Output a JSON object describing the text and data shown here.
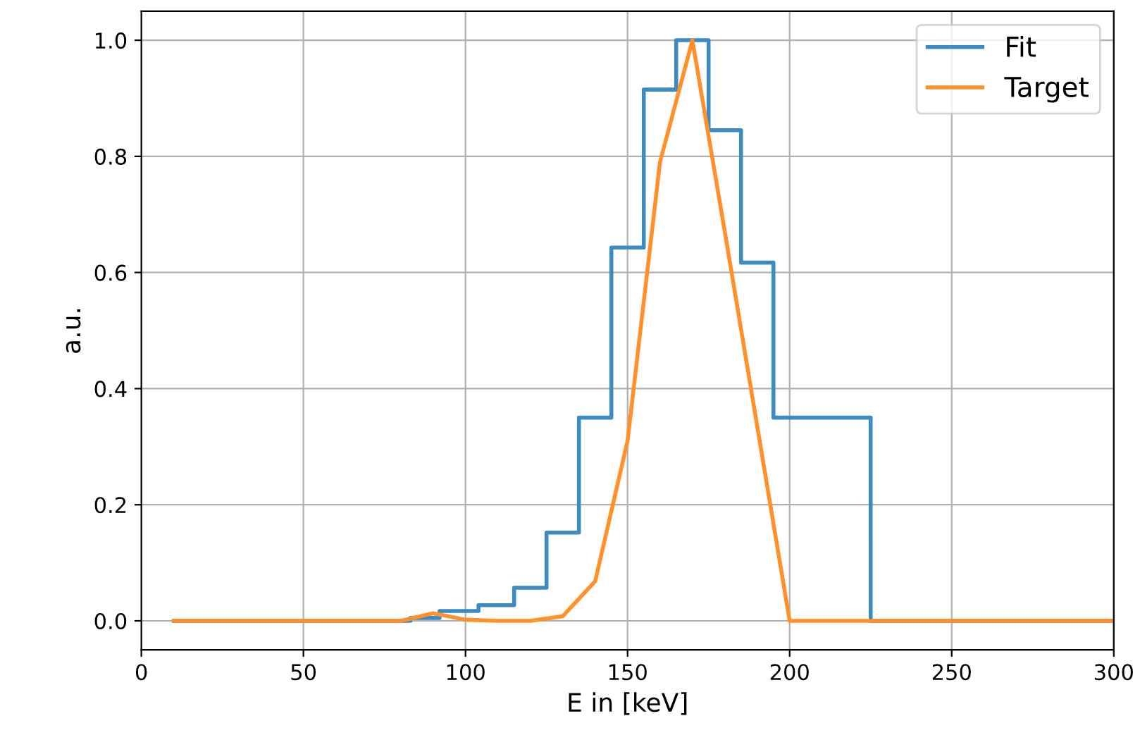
{
  "chart_data": {
    "type": "step",
    "xlabel": "E in [keV]",
    "ylabel": "a.u.",
    "xlim": [
      0,
      300
    ],
    "xticks": [
      0,
      50,
      100,
      150,
      200,
      250,
      300
    ],
    "ylim": [
      -0.05,
      1.05
    ],
    "yticks": [
      {
        "value": 0,
        "label": "0.0"
      },
      {
        "value": 0.2,
        "label": "0.2"
      },
      {
        "value": 0.4,
        "label": "0.4"
      },
      {
        "value": 0.6,
        "label": "0.6"
      },
      {
        "value": 0.8,
        "label": "0.8"
      },
      {
        "value": 1.0,
        "label": "1.0"
      }
    ],
    "grid": true,
    "legend": "top right",
    "series": [
      {
        "name": "Fit",
        "color": "#3c8bc2",
        "x": [
          10,
          83,
          92,
          104,
          115,
          125,
          135,
          145,
          155,
          165,
          175,
          185,
          195,
          225,
          300
        ],
        "values": [
          0,
          0.005,
          0.017,
          0.027,
          0.057,
          0.152,
          0.35,
          0.643,
          0.915,
          1.0,
          0.845,
          0.617,
          0.35,
          0,
          0
        ]
      },
      {
        "name": "Target",
        "type": "line",
        "color": "#ff902a",
        "x": [
          10,
          80,
          90,
          100,
          110,
          120,
          130,
          140,
          150,
          160,
          170,
          180,
          190,
          200,
          300
        ],
        "values": [
          0,
          0,
          0.013,
          0.002,
          0,
          0,
          0.008,
          0.068,
          0.31,
          0.79,
          1.0,
          0.67,
          0.335,
          0,
          0
        ]
      }
    ]
  }
}
